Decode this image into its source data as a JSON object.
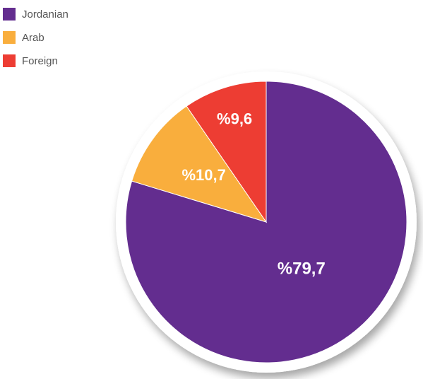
{
  "chart_data": {
    "type": "pie",
    "title": "",
    "categories": [
      "Jordanian",
      "Arab",
      "Foreign"
    ],
    "values": [
      79.7,
      10.7,
      9.6
    ],
    "labels": [
      "%79,7",
      "%10,7",
      "%9,6"
    ],
    "colors": [
      "#632d8f",
      "#f9ae3d",
      "#ed3d33"
    ],
    "start": "top, clockwise",
    "legend": "top-left"
  },
  "legend": {
    "items": [
      {
        "label": "Jordanian",
        "color": "#632d8f"
      },
      {
        "label": "Arab",
        "color": "#f9ae3d"
      },
      {
        "label": "Foreign",
        "color": "#ed3d33"
      }
    ]
  }
}
